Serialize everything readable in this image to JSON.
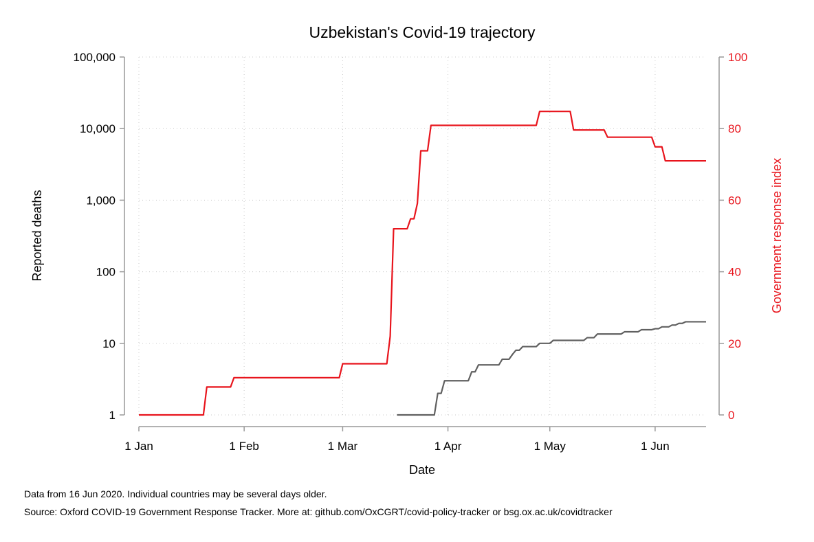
{
  "chart_data": {
    "type": "line",
    "title": "Uzbekistan's Covid-19 trajectory",
    "xlabel": "Date",
    "ylabel_left": "Reported deaths",
    "ylabel_right": "Government response index",
    "x_ticks": [
      "1 Jan",
      "1 Feb",
      "1 Mar",
      "1 Apr",
      "1 May",
      "1 Jun"
    ],
    "x_range": [
      "2020-01-01",
      "2020-06-16"
    ],
    "y_left": {
      "scale": "log",
      "range": [
        1,
        100000
      ],
      "ticks": [
        "1",
        "10",
        "100",
        "1,000",
        "10,000",
        "100,000"
      ]
    },
    "y_right": {
      "scale": "linear",
      "range": [
        0,
        100
      ],
      "ticks": [
        "0",
        "20",
        "40",
        "60",
        "80",
        "100"
      ]
    },
    "grid": true,
    "series": [
      {
        "axis": "right",
        "color": "#e8141c",
        "points": [
          [
            "2020-01-01",
            0
          ],
          [
            "2020-01-20",
            0
          ],
          [
            "2020-01-21",
            7.8
          ],
          [
            "2020-01-28",
            7.8
          ],
          [
            "2020-01-29",
            10.4
          ],
          [
            "2020-02-29",
            10.4
          ],
          [
            "2020-03-01",
            14.3
          ],
          [
            "2020-03-14",
            14.3
          ],
          [
            "2020-03-15",
            22
          ],
          [
            "2020-03-16",
            52
          ],
          [
            "2020-03-20",
            52
          ],
          [
            "2020-03-21",
            54.8
          ],
          [
            "2020-03-22",
            54.8
          ],
          [
            "2020-03-23",
            59.1
          ],
          [
            "2020-03-24",
            73.8
          ],
          [
            "2020-03-26",
            73.8
          ],
          [
            "2020-03-27",
            80.9
          ],
          [
            "2020-04-27",
            80.9
          ],
          [
            "2020-04-28",
            84.8
          ],
          [
            "2020-05-07",
            84.8
          ],
          [
            "2020-05-08",
            79.6
          ],
          [
            "2020-05-17",
            79.6
          ],
          [
            "2020-05-18",
            77.6
          ],
          [
            "2020-05-31",
            77.6
          ],
          [
            "2020-06-01",
            74.9
          ],
          [
            "2020-06-03",
            74.9
          ],
          [
            "2020-06-04",
            71
          ],
          [
            "2020-06-16",
            71
          ]
        ]
      },
      {
        "axis": "left",
        "color": "#606060",
        "points": [
          [
            "2020-03-17",
            1
          ],
          [
            "2020-03-28",
            1
          ],
          [
            "2020-03-29",
            2
          ],
          [
            "2020-03-30",
            2
          ],
          [
            "2020-03-31",
            3
          ],
          [
            "2020-04-07",
            3
          ],
          [
            "2020-04-08",
            4
          ],
          [
            "2020-04-09",
            4
          ],
          [
            "2020-04-10",
            5
          ],
          [
            "2020-04-16",
            5
          ],
          [
            "2020-04-17",
            6
          ],
          [
            "2020-04-19",
            6
          ],
          [
            "2020-04-20",
            7
          ],
          [
            "2020-04-21",
            8
          ],
          [
            "2020-04-22",
            8
          ],
          [
            "2020-04-23",
            9
          ],
          [
            "2020-04-27",
            9
          ],
          [
            "2020-04-28",
            10
          ],
          [
            "2020-05-01",
            10
          ],
          [
            "2020-05-02",
            11
          ],
          [
            "2020-05-11",
            11
          ],
          [
            "2020-05-12",
            12
          ],
          [
            "2020-05-14",
            12
          ],
          [
            "2020-05-15",
            13.5
          ],
          [
            "2020-05-22",
            13.5
          ],
          [
            "2020-05-23",
            14.5
          ],
          [
            "2020-05-27",
            14.5
          ],
          [
            "2020-05-28",
            15.5
          ],
          [
            "2020-05-31",
            15.5
          ],
          [
            "2020-06-01",
            16
          ],
          [
            "2020-06-02",
            16
          ],
          [
            "2020-06-03",
            17
          ],
          [
            "2020-06-05",
            17
          ],
          [
            "2020-06-06",
            18
          ],
          [
            "2020-06-07",
            18
          ],
          [
            "2020-06-08",
            19
          ],
          [
            "2020-06-09",
            19
          ],
          [
            "2020-06-10",
            20
          ],
          [
            "2020-06-16",
            20
          ]
        ]
      }
    ]
  },
  "notes": {
    "line1": "Data from 16 Jun 2020. Individual countries may be several days older.",
    "line2": "Source: Oxford COVID-19 Government Response Tracker. More at: github.com/OxCGRT/covid-policy-tracker or bsg.ox.ac.uk/covidtracker"
  }
}
